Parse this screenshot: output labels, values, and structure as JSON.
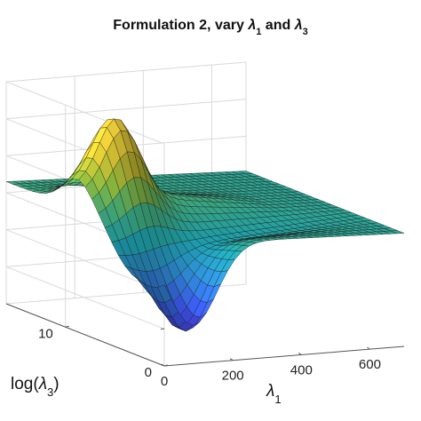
{
  "chart_data": {
    "type": "surface3d",
    "title_prefix": "Formulation 2, vary ",
    "title_mid": " and ",
    "title_lambda": "λ",
    "title_sub1": "1",
    "title_sub3": "3",
    "x_axis": {
      "label_symbol": "λ",
      "label_sub": "1",
      "range": [
        0,
        700
      ],
      "ticks": [
        "0",
        "200",
        "400",
        "600"
      ]
    },
    "y_axis": {
      "label_prefix": "log(",
      "label_symbol": "λ",
      "label_sub": "3",
      "label_suffix": ")",
      "range": [
        0,
        16
      ],
      "ticks": [
        "0",
        "10"
      ]
    },
    "z_axis": {
      "ticks_labeled": false,
      "tick_count": 6
    },
    "grid": true,
    "colormap": "parula",
    "colors": {
      "low": "#3e26a8",
      "mid_low": "#2f8cd8",
      "mid": "#31c0a4",
      "mid_high": "#a8d04a",
      "high": "#f9d83e"
    }
  }
}
